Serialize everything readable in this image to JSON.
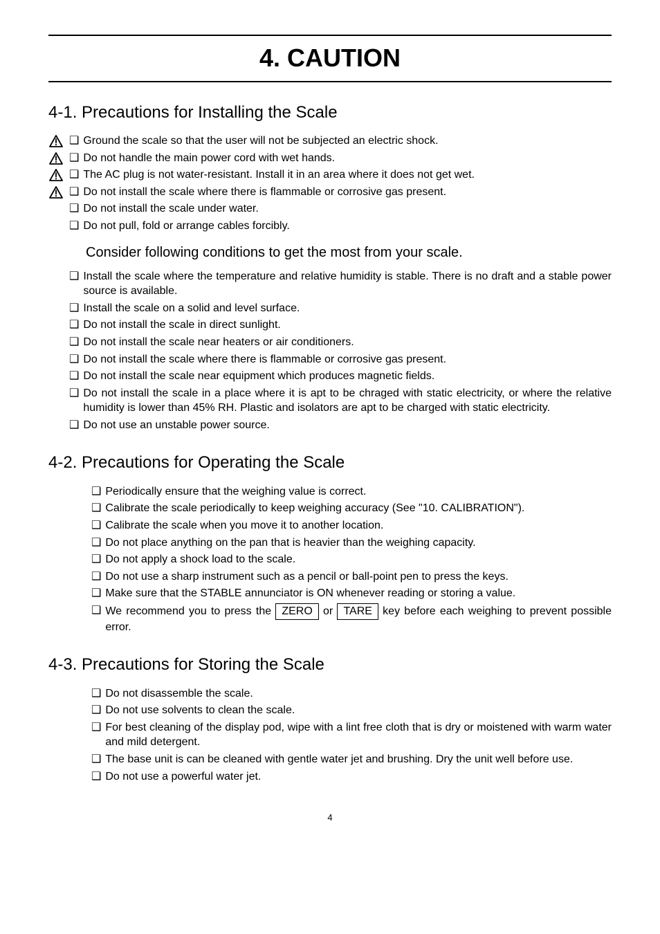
{
  "page_number": "4",
  "chapter_title": "4. CAUTION",
  "sections": [
    {
      "title": "4-1. Precautions for Installing the Scale",
      "groups": [
        {
          "items": [
            {
              "warn": true,
              "text": "Ground the scale so that the user will not be subjected an electric shock."
            },
            {
              "warn": true,
              "text": "Do not handle the main power cord with wet hands."
            },
            {
              "warn": true,
              "text": "The AC plug is not water-resistant. Install it in an area where it does not get wet."
            },
            {
              "warn": true,
              "text": "Do not install the scale where there is flammable or corrosive gas present."
            },
            {
              "warn": false,
              "text": "Do not install the scale under water."
            },
            {
              "warn": false,
              "text": "Do not pull, fold or arrange cables forcibly."
            }
          ]
        },
        {
          "subheading": "Consider following conditions to get the most from your scale.",
          "items": [
            {
              "warn": false,
              "justify": true,
              "text": "Install the scale where the temperature and relative humidity is stable. There is no draft and a stable power source is available."
            },
            {
              "warn": false,
              "text": "Install the scale on a solid and level surface."
            },
            {
              "warn": false,
              "text": "Do not install the scale in direct sunlight."
            },
            {
              "warn": false,
              "text": "Do not install the scale near heaters or air conditioners."
            },
            {
              "warn": false,
              "text": "Do not install the scale where there is flammable or corrosive gas present."
            },
            {
              "warn": false,
              "text": "Do not install the scale near equipment which produces magnetic fields."
            },
            {
              "warn": false,
              "justify": true,
              "text": "Do not install the scale in a place where it is apt to be chraged with static electricity, or where the relative humidity is lower than 45% RH. Plastic and isolators are apt to be charged with static electricity."
            },
            {
              "warn": false,
              "text": "Do not use an unstable power source."
            }
          ]
        }
      ]
    },
    {
      "title": "4-2. Precautions for Operating the Scale",
      "groups": [
        {
          "indented": true,
          "items": [
            {
              "text": "Periodically ensure that the weighing value is correct."
            },
            {
              "text": "Calibrate the scale periodically to keep weighing accuracy (See \"10. CALIBRATION\")."
            },
            {
              "text": "Calibrate the scale when you move it to another location."
            },
            {
              "text": "Do not place anything on the pan that is heavier than the weighing capacity."
            },
            {
              "text": "Do not apply a shock load to the scale."
            },
            {
              "text": "Do not use a sharp instrument such as a pencil or ball-point pen to press the keys."
            },
            {
              "text": "Make sure that the STABLE annunciator is ON whenever reading or storing a value."
            },
            {
              "special": "zero_tare"
            }
          ]
        }
      ]
    },
    {
      "title": "4-3. Precautions for Storing the Scale",
      "groups": [
        {
          "indented": true,
          "items": [
            {
              "text": "Do not disassemble the scale."
            },
            {
              "text": "Do not use solvents to clean the scale."
            },
            {
              "justify": true,
              "text": "For best cleaning of the display pod, wipe with a lint free cloth that is dry or moistened with warm water and mild detergent."
            },
            {
              "justify": true,
              "text": "The base unit is can be cleaned with gentle water jet and brushing. Dry the unit well before use."
            },
            {
              "text": "Do not use a powerful water jet."
            }
          ]
        }
      ]
    }
  ],
  "zero_tare": {
    "pre": "We recommend you to press the ",
    "key1": "ZERO",
    "mid": " or ",
    "key2": "TARE",
    "post": " key before each weighing to prevent possible error."
  }
}
